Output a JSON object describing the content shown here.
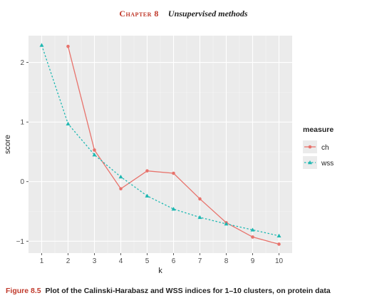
{
  "header": {
    "chapter_label": "Chapter 8",
    "chapter_title": "Unsupervised methods"
  },
  "caption": {
    "label": "Figure 8.5",
    "text": "Plot of the Calinski-Harabasz and WSS indices for 1–10 clusters, on protein data"
  },
  "colors": {
    "panel": "#ebebeb",
    "grid_major": "#ffffff",
    "grid_minor": "#f5f5f5",
    "ch": "#e8736c",
    "wss": "#1fb8b2"
  },
  "chart_data": {
    "type": "line",
    "xlabel": "k",
    "ylabel": "score",
    "xlim": [
      0.5,
      10.5
    ],
    "ylim": [
      -1.2,
      2.45
    ],
    "x_ticks": [
      1,
      2,
      3,
      4,
      5,
      6,
      7,
      8,
      9,
      10
    ],
    "y_ticks": [
      -1,
      0,
      1,
      2
    ],
    "y_tick_labels": [
      "−1",
      "0",
      "1",
      "2"
    ],
    "grid": true,
    "legend": {
      "title": "measure",
      "position": "right"
    },
    "series": [
      {
        "name": "ch",
        "marker": "circle",
        "line": "solid",
        "x": [
          2,
          3,
          4,
          5,
          6,
          7,
          8,
          9,
          10
        ],
        "values": [
          2.27,
          0.53,
          -0.12,
          0.18,
          0.14,
          -0.29,
          -0.69,
          -0.93,
          -1.05
        ]
      },
      {
        "name": "wss",
        "marker": "triangle",
        "line": "dotted",
        "x": [
          1,
          2,
          3,
          4,
          5,
          6,
          7,
          8,
          9,
          10
        ],
        "values": [
          2.29,
          0.97,
          0.45,
          0.08,
          -0.24,
          -0.46,
          -0.6,
          -0.71,
          -0.81,
          -0.91
        ]
      }
    ]
  }
}
